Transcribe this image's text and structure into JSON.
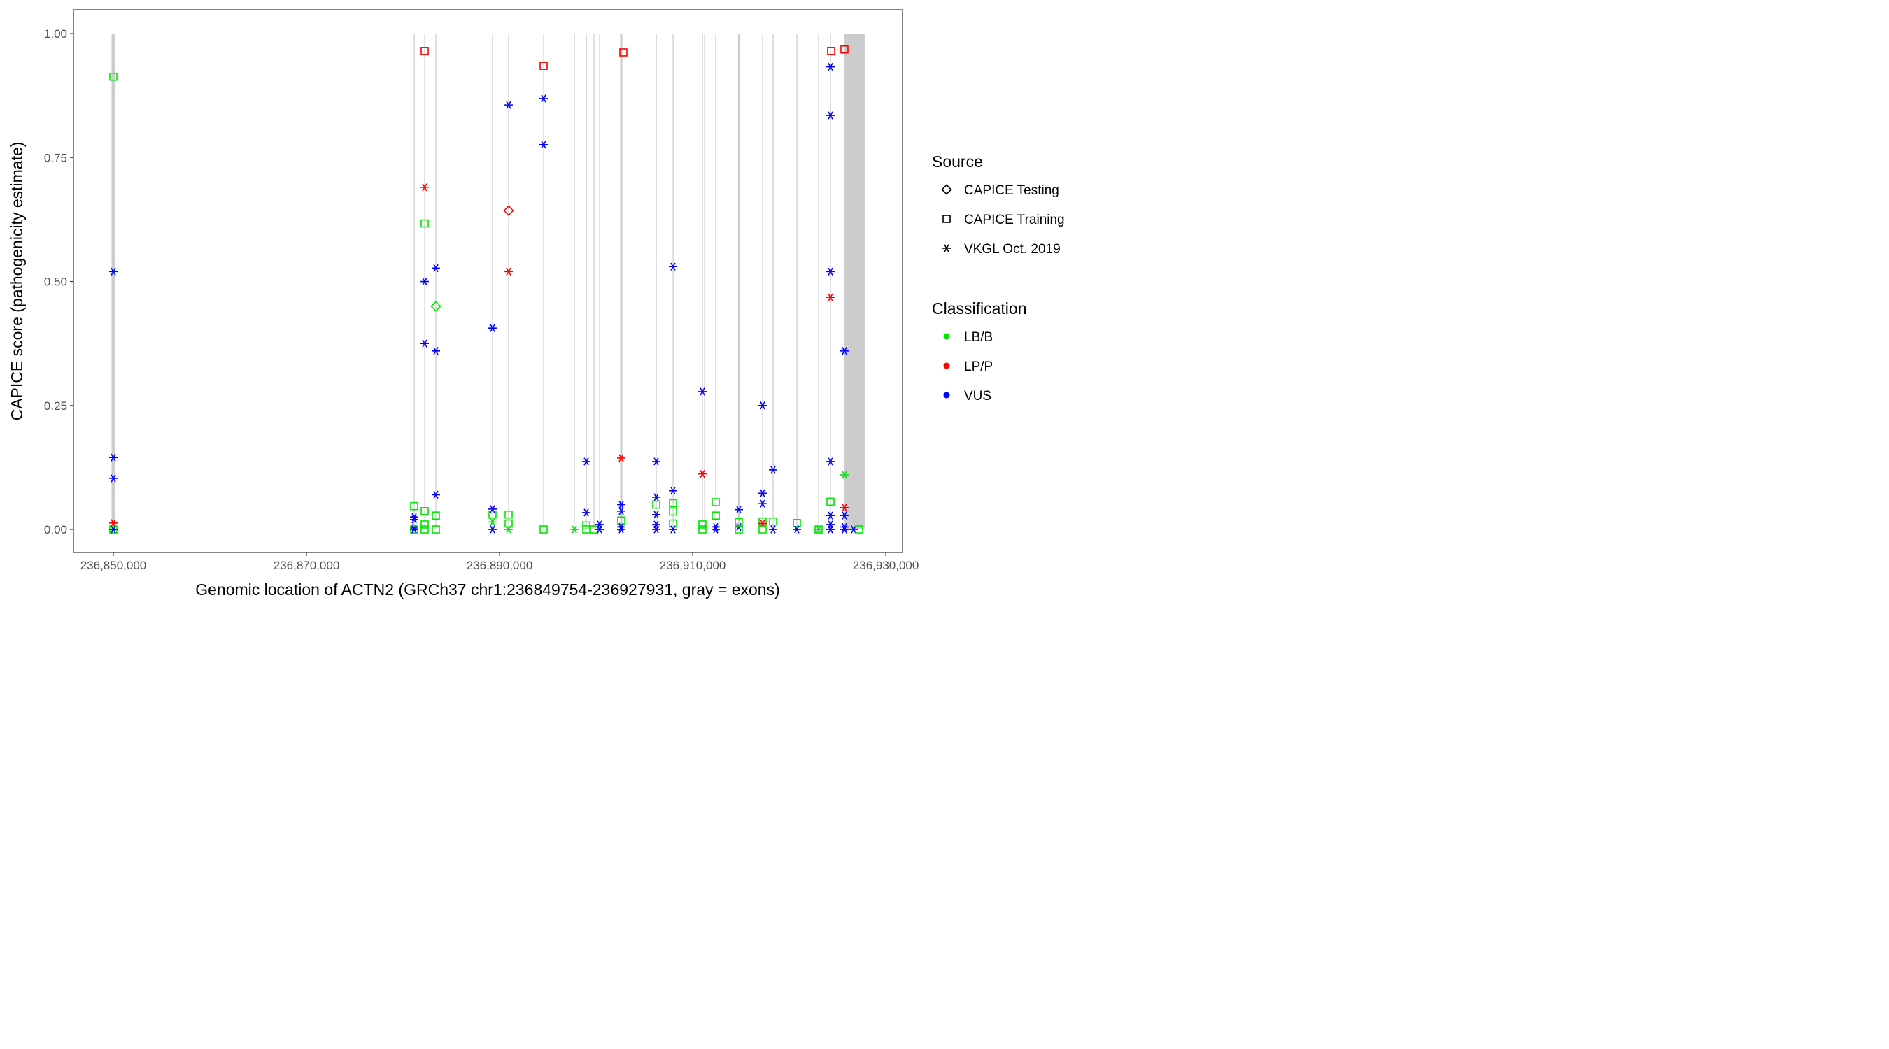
{
  "chart_data": {
    "type": "scatter",
    "xlabel": "Genomic location of ACTN2 (GRCh37 chr1:236849754-236927931, gray = exons)",
    "ylabel": "CAPICE score (pathogenicity estimate)",
    "xlim": [
      236845870,
      236931735
    ],
    "ylim": [
      -0.0465,
      1.048
    ],
    "x_ticks": [
      236850000,
      236870000,
      236890000,
      236910000,
      236930000
    ],
    "x_tick_labels": [
      "236,850,000",
      "236,870,000",
      "236,890,000",
      "236,910,000",
      "236,930,000"
    ],
    "y_ticks": [
      0,
      0.25,
      0.5,
      0.75,
      1.0
    ],
    "y_tick_labels": [
      "0.00",
      "0.25",
      "0.50",
      "0.75",
      "1.00"
    ],
    "grid": false,
    "exons": [
      [
        236849820,
        236850180
      ],
      [
        236881120,
        236881200
      ],
      [
        236882205,
        236882285
      ],
      [
        236883365,
        236883445
      ],
      [
        236889235,
        236889315
      ],
      [
        236890900,
        236890980
      ],
      [
        236894525,
        236894605
      ],
      [
        236897710,
        236897790
      ],
      [
        236898945,
        236899025
      ],
      [
        236899740,
        236899820
      ],
      [
        236900320,
        236900400
      ],
      [
        236902500,
        236902720
      ],
      [
        236906190,
        236906270
      ],
      [
        236907930,
        236908010
      ],
      [
        236910970,
        236911050
      ],
      [
        236911190,
        236911270
      ],
      [
        236912350,
        236912430
      ],
      [
        236914700,
        236914860
      ],
      [
        236917205,
        236917285
      ],
      [
        236918290,
        236918370
      ],
      [
        236920755,
        236920835
      ],
      [
        236923000,
        236923080
      ],
      [
        236924230,
        236924310
      ],
      [
        236925720,
        236927820
      ]
    ],
    "legend": {
      "placement": "right",
      "source_title": "Source",
      "source_items": [
        {
          "label": "CAPICE Testing",
          "shape": "diamond"
        },
        {
          "label": "CAPICE Training",
          "shape": "square"
        },
        {
          "label": "VKGL Oct. 2019",
          "shape": "star"
        }
      ],
      "class_title": "Classification",
      "class_items": [
        {
          "label": "LB/B",
          "color": "#00E600"
        },
        {
          "label": "LP/P",
          "color": "#FF0000"
        },
        {
          "label": "VUS",
          "color": "#0000FF"
        }
      ]
    },
    "colors": {
      "LB/B": "#00E600",
      "LP/P": "#FF0000",
      "VUS": "#0000FF",
      "exon": "#CCCCCC"
    },
    "points": [
      {
        "x": 236850000,
        "pts": [
          [
            0.913,
            "square",
            "LB/B"
          ],
          [
            0.52,
            "star",
            "VUS"
          ],
          [
            0.145,
            "star",
            "VUS"
          ],
          [
            0.103,
            "star",
            "VUS"
          ],
          [
            0.013,
            "star",
            "LP/P"
          ],
          [
            0,
            "square",
            "LB/B"
          ],
          [
            0,
            "star",
            "LB/B"
          ],
          [
            0,
            "star",
            "VUS"
          ]
        ]
      },
      {
        "x": 236881158,
        "pts": [
          [
            0.047,
            "square",
            "LB/B"
          ],
          [
            0.025,
            "star",
            "VUS"
          ],
          [
            0.02,
            "star",
            "VUS"
          ],
          [
            0.003,
            "star",
            "VUS"
          ],
          [
            0,
            "square",
            "LB/B"
          ],
          [
            0,
            "star",
            "VUS"
          ]
        ]
      },
      {
        "x": 236882245,
        "pts": [
          [
            0.965,
            "square",
            "LP/P"
          ],
          [
            0.69,
            "star",
            "LP/P"
          ],
          [
            0.617,
            "square",
            "LB/B"
          ],
          [
            0.5,
            "star",
            "VUS"
          ],
          [
            0.375,
            "star",
            "VUS"
          ],
          [
            0.037,
            "square",
            "LB/B"
          ],
          [
            0.01,
            "square",
            "LB/B"
          ],
          [
            0,
            "square",
            "LB/B"
          ]
        ]
      },
      {
        "x": 236883404,
        "pts": [
          [
            0.527,
            "star",
            "VUS"
          ],
          [
            0.45,
            "diamond",
            "LB/B"
          ],
          [
            0.36,
            "star",
            "VUS"
          ],
          [
            0.07,
            "star",
            "VUS"
          ],
          [
            0.028,
            "square",
            "LB/B"
          ],
          [
            0,
            "square",
            "LB/B"
          ]
        ]
      },
      {
        "x": 236889273,
        "pts": [
          [
            0.406,
            "star",
            "VUS"
          ],
          [
            0.041,
            "star",
            "VUS"
          ],
          [
            0.03,
            "square",
            "LB/B"
          ],
          [
            0.015,
            "star",
            "LB/B"
          ],
          [
            0,
            "star",
            "VUS"
          ]
        ]
      },
      {
        "x": 236890940,
        "pts": [
          [
            0.856,
            "star",
            "VUS"
          ],
          [
            0.643,
            "diamond",
            "LP/P"
          ],
          [
            0.52,
            "star",
            "LP/P"
          ],
          [
            0.03,
            "square",
            "LB/B"
          ],
          [
            0.012,
            "square",
            "LB/B"
          ],
          [
            0,
            "star",
            "LB/B"
          ]
        ]
      },
      {
        "x": 236894563,
        "pts": [
          [
            0.935,
            "square",
            "LP/P"
          ],
          [
            0.869,
            "star",
            "VUS"
          ],
          [
            0.776,
            "star",
            "VUS"
          ],
          [
            0,
            "square",
            "LB/B"
          ]
        ]
      },
      {
        "x": 236897751,
        "pts": [
          [
            0,
            "star",
            "LB/B"
          ]
        ]
      },
      {
        "x": 236898983,
        "pts": [
          [
            0.137,
            "star",
            "VUS"
          ],
          [
            0.034,
            "star",
            "VUS"
          ],
          [
            0.008,
            "square",
            "LB/B"
          ],
          [
            0,
            "square",
            "LB/B"
          ]
        ]
      },
      {
        "x": 236899780,
        "pts": [
          [
            0,
            "square",
            "LB/B"
          ]
        ]
      },
      {
        "x": 236900360,
        "pts": [
          [
            0.01,
            "star",
            "VUS"
          ],
          [
            0,
            "star",
            "VUS"
          ]
        ]
      },
      {
        "x": 236902606,
        "pts": [
          [
            0.144,
            "star",
            "LP/P"
          ],
          [
            0.05,
            "star",
            "VUS"
          ],
          [
            0.037,
            "star",
            "VUS"
          ],
          [
            0.018,
            "square",
            "LB/B"
          ],
          [
            0.005,
            "star",
            "VUS"
          ],
          [
            0,
            "star",
            "VUS"
          ]
        ]
      },
      {
        "x": 236902823,
        "pts": [
          [
            0.962,
            "square",
            "LP/P"
          ]
        ]
      },
      {
        "x": 236906229,
        "pts": [
          [
            0.137,
            "star",
            "VUS"
          ],
          [
            0.065,
            "star",
            "VUS"
          ],
          [
            0.05,
            "square",
            "LB/B"
          ],
          [
            0.03,
            "star",
            "VUS"
          ],
          [
            0.01,
            "star",
            "VUS"
          ],
          [
            0,
            "star",
            "VUS"
          ]
        ]
      },
      {
        "x": 236907968,
        "pts": [
          [
            0.53,
            "star",
            "VUS"
          ],
          [
            0.078,
            "star",
            "VUS"
          ],
          [
            0.053,
            "square",
            "LB/B"
          ],
          [
            0.036,
            "square",
            "LB/B"
          ],
          [
            0.012,
            "square",
            "LB/B"
          ],
          [
            0,
            "star",
            "VUS"
          ]
        ]
      },
      {
        "x": 236911011,
        "pts": [
          [
            0.278,
            "star",
            "VUS"
          ],
          [
            0.112,
            "star",
            "LP/P"
          ],
          [
            0.01,
            "square",
            "LB/B"
          ],
          [
            0,
            "square",
            "LB/B"
          ]
        ]
      },
      {
        "x": 236912388,
        "pts": [
          [
            0.055,
            "square",
            "LB/B"
          ],
          [
            0.028,
            "square",
            "LB/B"
          ],
          [
            0.005,
            "star",
            "VUS"
          ],
          [
            0,
            "star",
            "VUS"
          ]
        ]
      },
      {
        "x": 236914779,
        "pts": [
          [
            0.04,
            "star",
            "VUS"
          ],
          [
            0.015,
            "square",
            "LB/B"
          ],
          [
            0.005,
            "star",
            "VUS"
          ],
          [
            0,
            "square",
            "LB/B"
          ]
        ]
      },
      {
        "x": 236917243,
        "pts": [
          [
            0.25,
            "star",
            "VUS"
          ],
          [
            0.073,
            "star",
            "VUS"
          ],
          [
            0.052,
            "star",
            "VUS"
          ],
          [
            0.016,
            "square",
            "LB/B"
          ],
          [
            0.012,
            "star",
            "LP/P"
          ],
          [
            0,
            "square",
            "LB/B"
          ]
        ]
      },
      {
        "x": 236918330,
        "pts": [
          [
            0.12,
            "star",
            "VUS"
          ],
          [
            0.016,
            "square",
            "LB/B"
          ],
          [
            0,
            "star",
            "VUS"
          ]
        ]
      },
      {
        "x": 236920793,
        "pts": [
          [
            0.013,
            "square",
            "LB/B"
          ],
          [
            0,
            "star",
            "VUS"
          ]
        ]
      },
      {
        "x": 236923040,
        "pts": [
          [
            0,
            "star",
            "LB/B"
          ],
          [
            0,
            "square",
            "LB/B"
          ]
        ]
      },
      {
        "x": 236924271,
        "pts": [
          [
            0.933,
            "star",
            "VUS"
          ],
          [
            0.835,
            "star",
            "VUS"
          ],
          [
            0.52,
            "star",
            "VUS"
          ],
          [
            0.468,
            "star",
            "LP/P"
          ],
          [
            0.137,
            "star",
            "VUS"
          ],
          [
            0.056,
            "square",
            "LB/B"
          ],
          [
            0.028,
            "star",
            "VUS"
          ],
          [
            0.01,
            "star",
            "VUS"
          ],
          [
            0,
            "star",
            "VUS"
          ]
        ]
      },
      {
        "x": 236924343,
        "pts": [
          [
            0.965,
            "square",
            "LP/P"
          ]
        ]
      },
      {
        "x": 236925720,
        "pts": [
          [
            0.968,
            "square",
            "LP/P"
          ],
          [
            0.36,
            "star",
            "VUS"
          ],
          [
            0.11,
            "star",
            "LB/B"
          ],
          [
            0.044,
            "star",
            "LP/P"
          ],
          [
            0.028,
            "star",
            "VUS"
          ],
          [
            0.005,
            "star",
            "VUS"
          ],
          [
            0,
            "star",
            "VUS"
          ]
        ]
      },
      {
        "x": 236926662,
        "pts": [
          [
            0,
            "star",
            "VUS"
          ]
        ]
      },
      {
        "x": 236927242,
        "pts": [
          [
            0,
            "square",
            "LB/B"
          ]
        ]
      }
    ]
  }
}
